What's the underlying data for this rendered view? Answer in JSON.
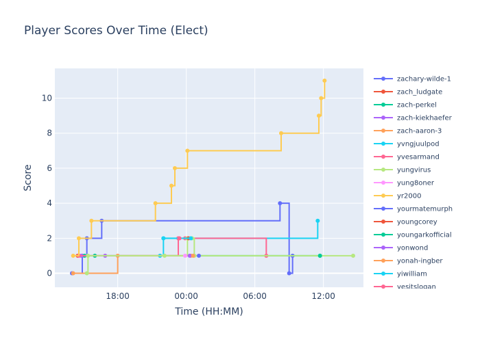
{
  "chart_data": {
    "type": "line",
    "line_shape": "step",
    "title": "Player Scores Over Time (Elect)",
    "xlabel": "Time (HH:MM)",
    "ylabel": "Score",
    "x_ticks": [
      {
        "value": 18,
        "label": "18:00"
      },
      {
        "value": 24,
        "label": "00:00"
      },
      {
        "value": 30,
        "label": "06:00"
      },
      {
        "value": 36,
        "label": "12:00"
      }
    ],
    "y_ticks": [
      0,
      2,
      4,
      6,
      8,
      10
    ],
    "xlim": [
      12.5,
      39.5
    ],
    "ylim": [
      -0.8,
      11.7
    ],
    "x_unit_note": "hours since 00:00 of first day; values > 24 are next day",
    "legend_position": "right",
    "colors": {
      "plot_bg": "#e5ecf6",
      "grid": "#ffffff",
      "text": "#2a3f5f"
    },
    "series": [
      {
        "name": "zachary-wilde-1",
        "color": "#636efa",
        "points": [
          [
            14.0,
            0
          ],
          [
            14.9,
            1
          ],
          [
            15.3,
            2
          ],
          [
            16.6,
            3
          ],
          [
            32.2,
            4
          ],
          [
            33.0,
            0
          ],
          [
            33.3,
            1
          ]
        ]
      },
      {
        "name": "zach_ludgate",
        "color": "#EF553B",
        "points": [
          [
            14.5,
            1
          ]
        ]
      },
      {
        "name": "zach-perkel",
        "color": "#00cc96",
        "points": [
          [
            15.1,
            1
          ],
          [
            16.0,
            1
          ],
          [
            35.7,
            1
          ]
        ]
      },
      {
        "name": "zach-kiekhaefer",
        "color": "#ab63fa",
        "points": [
          [
            14.8,
            1
          ],
          [
            16.9,
            1
          ]
        ]
      },
      {
        "name": "zach-aaron-3",
        "color": "#FFA15A",
        "points": [
          [
            14.1,
            0
          ],
          [
            18.0,
            1
          ],
          [
            24.4,
            1
          ]
        ]
      },
      {
        "name": "yvngjuulpod",
        "color": "#19d3f3",
        "points": [
          [
            21.7,
            1
          ],
          [
            22.0,
            2
          ],
          [
            35.5,
            3
          ]
        ]
      },
      {
        "name": "yvesarmand",
        "color": "#FF6692",
        "points": [
          [
            14.6,
            1
          ],
          [
            23.3,
            2
          ],
          [
            23.9,
            2
          ],
          [
            31.0,
            1
          ]
        ]
      },
      {
        "name": "yungvirus",
        "color": "#B6E880",
        "points": [
          [
            15.3,
            0
          ],
          [
            15.4,
            1
          ],
          [
            22.1,
            1
          ],
          [
            24.1,
            2
          ],
          [
            24.5,
            2
          ],
          [
            24.7,
            1
          ],
          [
            38.6,
            1
          ]
        ]
      },
      {
        "name": "yung8oner",
        "color": "#FF97FF",
        "points": [
          [
            23.9,
            1
          ]
        ]
      },
      {
        "name": "yr2000",
        "color": "#FECB52",
        "points": [
          [
            14.1,
            1
          ],
          [
            14.6,
            2
          ],
          [
            15.7,
            3
          ],
          [
            21.3,
            4
          ],
          [
            22.7,
            5
          ],
          [
            23.0,
            6
          ],
          [
            24.1,
            7
          ],
          [
            32.3,
            8
          ],
          [
            35.6,
            9
          ],
          [
            35.8,
            10
          ],
          [
            36.1,
            11
          ]
        ]
      },
      {
        "name": "yourmatemurph",
        "color": "#636efa",
        "points": [
          [
            25.1,
            1
          ]
        ]
      },
      {
        "name": "youngcorey",
        "color": "#EF553B",
        "points": [
          [
            24.2,
            2
          ]
        ]
      },
      {
        "name": "youngarkofficial",
        "color": "#00cc96",
        "points": [
          [
            35.7,
            1
          ]
        ]
      },
      {
        "name": "yonwond",
        "color": "#ab63fa",
        "points": [
          [
            24.3,
            1
          ]
        ]
      },
      {
        "name": "yonah-ingber",
        "color": "#FFA15A",
        "points": [
          [
            24.6,
            1
          ]
        ]
      },
      {
        "name": "yiwilliam",
        "color": "#19d3f3",
        "points": [
          [
            22.0,
            2
          ],
          [
            24.4,
            2
          ]
        ]
      },
      {
        "name": "yesitslogan",
        "color": "#FF6692",
        "points": [
          [
            23.4,
            2
          ]
        ]
      }
    ]
  }
}
